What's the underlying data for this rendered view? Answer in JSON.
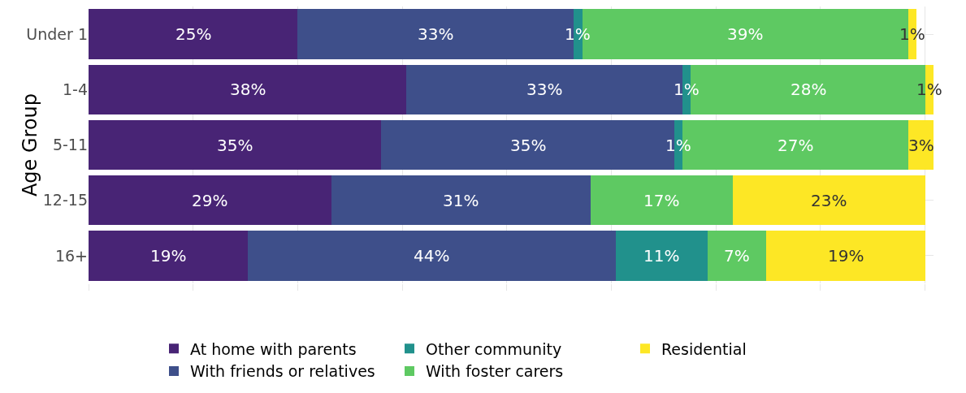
{
  "chart_data": {
    "type": "bar",
    "orientation": "horizontal",
    "stacked": true,
    "ylabel": "Age Group",
    "categories": [
      "Under 1",
      "1-4",
      "5-11",
      "12-15",
      "16+"
    ],
    "series": [
      {
        "name": "At home with parents",
        "color": "#482475",
        "values": [
          25,
          38,
          35,
          29,
          19
        ],
        "value_labels": [
          "25%",
          "38%",
          "35%",
          "29%",
          "19%"
        ]
      },
      {
        "name": "With friends or relatives",
        "color": "#3e4f8a",
        "values": [
          33,
          33,
          35,
          31,
          44
        ],
        "value_labels": [
          "33%",
          "33%",
          "35%",
          "31%",
          "44%"
        ]
      },
      {
        "name": "Other community",
        "color": "#21918c",
        "values": [
          1,
          1,
          1,
          0,
          11
        ],
        "value_labels": [
          "1%",
          "1%",
          "1%",
          null,
          "11%"
        ]
      },
      {
        "name": "With foster carers",
        "color": "#5ec962",
        "values": [
          39,
          28,
          27,
          17,
          7
        ],
        "value_labels": [
          "39%",
          "28%",
          "27%",
          "17%",
          "7%"
        ]
      },
      {
        "name": "Residential",
        "color": "#fde725",
        "values": [
          1,
          1,
          3,
          23,
          19
        ],
        "value_labels": [
          "1%",
          "1%",
          "3%",
          "23%",
          "19%"
        ]
      }
    ],
    "xlim": [
      0,
      101
    ],
    "xticks": [
      {
        "value": 0,
        "label": null
      },
      {
        "value": 12.5,
        "label": null
      },
      {
        "value": 25,
        "label": null
      },
      {
        "value": 37.5,
        "label": null
      },
      {
        "value": 50,
        "label": null
      },
      {
        "value": 62.5,
        "label": null
      },
      {
        "value": 75,
        "label": null
      },
      {
        "value": 87.5,
        "label": null
      },
      {
        "value": 100,
        "label": null
      }
    ],
    "grid": true,
    "legend": "bottom",
    "tick_labels": "y"
  }
}
